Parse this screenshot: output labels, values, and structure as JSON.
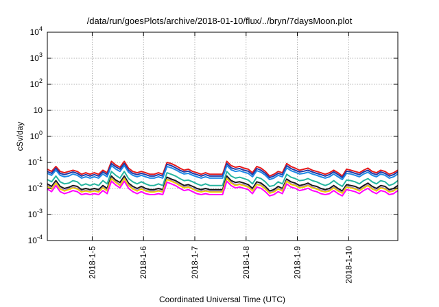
{
  "chart_data": {
    "type": "line",
    "title": "/data/run/goesPlots/archive/2018-01-10/flux/../bryn/7daysMoon.plot",
    "xlabel": "Coordinated Universal Time (UTC)",
    "ylabel": "cSv/day",
    "y_scale": "log",
    "ylim": [
      0.0001,
      10000
    ],
    "y_ticks": [
      {
        "value": 0.0001,
        "base": "10",
        "exp": "-4"
      },
      {
        "value": 0.001,
        "base": "10",
        "exp": "-3"
      },
      {
        "value": 0.01,
        "base": "10",
        "exp": "-2"
      },
      {
        "value": 0.1,
        "base": "10",
        "exp": "-1"
      },
      {
        "value": 1,
        "base": "10",
        "exp": "0"
      },
      {
        "value": 10,
        "base": "10",
        "exp": ""
      },
      {
        "value": 100,
        "base": "10",
        "exp": "2"
      },
      {
        "value": 1000,
        "base": "10",
        "exp": "3"
      },
      {
        "value": 10000,
        "base": "10",
        "exp": "4"
      }
    ],
    "xlim": [
      "2018-01-04T03:00",
      "2018-01-10T23:00"
    ],
    "x_ticks": [
      "2018-1-5",
      "2018-1-6",
      "2018-1-7",
      "2018-1-8",
      "2018-1-9",
      "2018-1-10"
    ],
    "grid": true,
    "x": [
      "2018-01-04T03:00",
      "2018-01-04T05:00",
      "2018-01-04T07:00",
      "2018-01-04T09:00",
      "2018-01-04T11:00",
      "2018-01-04T13:00",
      "2018-01-04T15:00",
      "2018-01-04T17:00",
      "2018-01-04T19:00",
      "2018-01-04T21:00",
      "2018-01-04T23:00",
      "2018-01-05T01:00",
      "2018-01-05T03:00",
      "2018-01-05T05:00",
      "2018-01-05T07:00",
      "2018-01-05T09:00",
      "2018-01-05T11:00",
      "2018-01-05T13:00",
      "2018-01-05T15:00",
      "2018-01-05T17:00",
      "2018-01-05T19:00",
      "2018-01-05T21:00",
      "2018-01-05T23:00",
      "2018-01-06T01:00",
      "2018-01-06T03:00",
      "2018-01-06T05:00",
      "2018-01-06T07:00",
      "2018-01-06T09:00",
      "2018-01-06T11:00",
      "2018-01-06T13:00",
      "2018-01-06T15:00",
      "2018-01-06T17:00",
      "2018-01-06T19:00",
      "2018-01-06T21:00",
      "2018-01-06T23:00",
      "2018-01-07T01:00",
      "2018-01-07T03:00",
      "2018-01-07T05:00",
      "2018-01-07T07:00",
      "2018-01-07T09:00",
      "2018-01-07T11:00",
      "2018-01-07T13:00",
      "2018-01-07T15:00",
      "2018-01-07T17:00",
      "2018-01-07T19:00",
      "2018-01-07T21:00",
      "2018-01-07T23:00",
      "2018-01-08T01:00",
      "2018-01-08T03:00",
      "2018-01-08T05:00",
      "2018-01-08T07:00",
      "2018-01-08T09:00",
      "2018-01-08T11:00",
      "2018-01-08T13:00",
      "2018-01-08T15:00",
      "2018-01-08T17:00",
      "2018-01-08T19:00",
      "2018-01-08T21:00",
      "2018-01-08T23:00",
      "2018-01-09T01:00",
      "2018-01-09T03:00",
      "2018-01-09T05:00",
      "2018-01-09T07:00",
      "2018-01-09T09:00",
      "2018-01-09T11:00",
      "2018-01-09T13:00",
      "2018-01-09T15:00",
      "2018-01-09T17:00",
      "2018-01-09T19:00",
      "2018-01-09T21:00",
      "2018-01-09T23:00",
      "2018-01-10T01:00",
      "2018-01-10T03:00",
      "2018-01-10T05:00",
      "2018-01-10T07:00",
      "2018-01-10T09:00",
      "2018-01-10T11:00",
      "2018-01-10T13:00",
      "2018-01-10T15:00",
      "2018-01-10T17:00",
      "2018-01-10T19:00",
      "2018-01-10T21:00",
      "2018-01-10T23:00"
    ],
    "series": [
      {
        "color": "#e41a1c",
        "values": [
          0.055,
          0.045,
          0.07,
          0.045,
          0.04,
          0.045,
          0.05,
          0.045,
          0.035,
          0.04,
          0.035,
          0.04,
          0.035,
          0.05,
          0.04,
          0.11,
          0.08,
          0.065,
          0.11,
          0.06,
          0.045,
          0.04,
          0.045,
          0.04,
          0.035,
          0.035,
          0.04,
          0.035,
          0.1,
          0.09,
          0.075,
          0.06,
          0.05,
          0.055,
          0.045,
          0.04,
          0.035,
          0.04,
          0.035,
          0.035,
          0.035,
          0.035,
          0.11,
          0.075,
          0.065,
          0.07,
          0.06,
          0.055,
          0.04,
          0.07,
          0.06,
          0.045,
          0.03,
          0.035,
          0.045,
          0.04,
          0.09,
          0.07,
          0.06,
          0.05,
          0.055,
          0.06,
          0.05,
          0.045,
          0.04,
          0.035,
          0.04,
          0.05,
          0.04,
          0.03,
          0.055,
          0.05,
          0.045,
          0.04,
          0.05,
          0.06,
          0.045,
          0.04,
          0.05,
          0.045,
          0.035,
          0.04,
          0.05
        ]
      },
      {
        "color": "#1f3aa8",
        "values": [
          0.045,
          0.038,
          0.06,
          0.038,
          0.034,
          0.038,
          0.043,
          0.038,
          0.03,
          0.034,
          0.03,
          0.034,
          0.03,
          0.043,
          0.034,
          0.09,
          0.068,
          0.055,
          0.09,
          0.05,
          0.038,
          0.034,
          0.038,
          0.034,
          0.03,
          0.03,
          0.034,
          0.03,
          0.085,
          0.075,
          0.062,
          0.05,
          0.043,
          0.046,
          0.038,
          0.034,
          0.03,
          0.034,
          0.03,
          0.03,
          0.03,
          0.03,
          0.09,
          0.062,
          0.055,
          0.058,
          0.05,
          0.046,
          0.034,
          0.058,
          0.05,
          0.038,
          0.026,
          0.03,
          0.038,
          0.034,
          0.075,
          0.058,
          0.05,
          0.043,
          0.046,
          0.05,
          0.043,
          0.038,
          0.034,
          0.03,
          0.034,
          0.043,
          0.034,
          0.026,
          0.046,
          0.043,
          0.038,
          0.034,
          0.043,
          0.05,
          0.038,
          0.034,
          0.043,
          0.038,
          0.03,
          0.034,
          0.043
        ]
      },
      {
        "color": "#1e88e5",
        "values": [
          0.038,
          0.032,
          0.05,
          0.032,
          0.028,
          0.03,
          0.036,
          0.032,
          0.025,
          0.028,
          0.025,
          0.028,
          0.025,
          0.036,
          0.028,
          0.075,
          0.056,
          0.045,
          0.075,
          0.042,
          0.032,
          0.028,
          0.032,
          0.028,
          0.025,
          0.025,
          0.028,
          0.025,
          0.07,
          0.062,
          0.052,
          0.042,
          0.036,
          0.038,
          0.032,
          0.028,
          0.025,
          0.028,
          0.025,
          0.025,
          0.025,
          0.025,
          0.075,
          0.052,
          0.045,
          0.048,
          0.042,
          0.038,
          0.028,
          0.048,
          0.042,
          0.032,
          0.022,
          0.025,
          0.032,
          0.028,
          0.062,
          0.048,
          0.042,
          0.036,
          0.038,
          0.042,
          0.036,
          0.032,
          0.028,
          0.025,
          0.028,
          0.036,
          0.028,
          0.022,
          0.038,
          0.036,
          0.032,
          0.028,
          0.036,
          0.042,
          0.032,
          0.028,
          0.036,
          0.032,
          0.025,
          0.028,
          0.036
        ]
      },
      {
        "color": "#26b5a0",
        "values": [
          0.022,
          0.018,
          0.03,
          0.018,
          0.015,
          0.016,
          0.02,
          0.018,
          0.013,
          0.015,
          0.013,
          0.015,
          0.013,
          0.02,
          0.015,
          0.045,
          0.032,
          0.025,
          0.045,
          0.024,
          0.018,
          0.015,
          0.018,
          0.015,
          0.013,
          0.013,
          0.015,
          0.013,
          0.04,
          0.035,
          0.03,
          0.024,
          0.02,
          0.021,
          0.018,
          0.015,
          0.013,
          0.015,
          0.013,
          0.013,
          0.013,
          0.013,
          0.045,
          0.03,
          0.025,
          0.027,
          0.024,
          0.021,
          0.015,
          0.027,
          0.024,
          0.018,
          0.012,
          0.013,
          0.018,
          0.015,
          0.035,
          0.027,
          0.024,
          0.02,
          0.021,
          0.024,
          0.02,
          0.018,
          0.015,
          0.013,
          0.015,
          0.02,
          0.015,
          0.012,
          0.021,
          0.02,
          0.018,
          0.015,
          0.02,
          0.024,
          0.018,
          0.015,
          0.02,
          0.018,
          0.013,
          0.015,
          0.02
        ]
      },
      {
        "color": "#1a1a1a",
        "values": [
          0.015,
          0.012,
          0.02,
          0.012,
          0.01,
          0.011,
          0.013,
          0.012,
          0.009,
          0.01,
          0.009,
          0.01,
          0.009,
          0.013,
          0.01,
          0.03,
          0.021,
          0.017,
          0.03,
          0.016,
          0.012,
          0.01,
          0.012,
          0.01,
          0.009,
          0.009,
          0.01,
          0.009,
          0.027,
          0.023,
          0.02,
          0.016,
          0.013,
          0.014,
          0.012,
          0.01,
          0.009,
          0.01,
          0.009,
          0.009,
          0.009,
          0.009,
          0.03,
          0.02,
          0.017,
          0.018,
          0.016,
          0.014,
          0.01,
          0.018,
          0.016,
          0.012,
          0.008,
          0.009,
          0.012,
          0.01,
          0.023,
          0.018,
          0.016,
          0.013,
          0.014,
          0.016,
          0.013,
          0.012,
          0.01,
          0.009,
          0.01,
          0.013,
          0.01,
          0.008,
          0.014,
          0.013,
          0.012,
          0.01,
          0.013,
          0.016,
          0.012,
          0.01,
          0.013,
          0.012,
          0.009,
          0.01,
          0.013
        ]
      },
      {
        "color": "#9b6bd6",
        "values": [
          0.013,
          0.01,
          0.017,
          0.01,
          0.0085,
          0.0095,
          0.011,
          0.01,
          0.0078,
          0.0085,
          0.0078,
          0.0085,
          0.0078,
          0.011,
          0.0085,
          0.025,
          0.018,
          0.014,
          0.025,
          0.0135,
          0.01,
          0.0085,
          0.01,
          0.0085,
          0.0078,
          0.0078,
          0.0085,
          0.0078,
          0.023,
          0.02,
          0.017,
          0.0135,
          0.011,
          0.012,
          0.01,
          0.0085,
          0.0078,
          0.0085,
          0.0078,
          0.0078,
          0.0078,
          0.0078,
          0.025,
          0.017,
          0.014,
          0.015,
          0.0135,
          0.012,
          0.0085,
          0.015,
          0.0135,
          0.01,
          0.007,
          0.0078,
          0.01,
          0.0085,
          0.02,
          0.015,
          0.0135,
          0.011,
          0.012,
          0.0135,
          0.011,
          0.01,
          0.0085,
          0.0078,
          0.0085,
          0.011,
          0.0085,
          0.007,
          0.012,
          0.011,
          0.01,
          0.0085,
          0.011,
          0.0135,
          0.01,
          0.0085,
          0.011,
          0.01,
          0.0078,
          0.0085,
          0.011
        ]
      },
      {
        "color": "#f0d000",
        "values": [
          0.012,
          0.0095,
          0.016,
          0.0095,
          0.008,
          0.009,
          0.0105,
          0.0095,
          0.0073,
          0.008,
          0.0073,
          0.008,
          0.0073,
          0.0105,
          0.008,
          0.024,
          0.017,
          0.013,
          0.024,
          0.0128,
          0.0095,
          0.008,
          0.0095,
          0.008,
          0.0073,
          0.0073,
          0.008,
          0.0073,
          0.022,
          0.019,
          0.016,
          0.0128,
          0.0105,
          0.0113,
          0.0095,
          0.008,
          0.0073,
          0.008,
          0.0073,
          0.0073,
          0.0073,
          0.0073,
          0.024,
          0.016,
          0.013,
          0.0142,
          0.0128,
          0.0113,
          0.008,
          0.0142,
          0.0128,
          0.0095,
          0.0066,
          0.0073,
          0.0095,
          0.008,
          0.019,
          0.0142,
          0.0128,
          0.0105,
          0.0113,
          0.0128,
          0.0105,
          0.0095,
          0.008,
          0.0073,
          0.008,
          0.0105,
          0.008,
          0.0066,
          0.0113,
          0.0105,
          0.0095,
          0.008,
          0.0105,
          0.0128,
          0.0095,
          0.008,
          0.0105,
          0.0095,
          0.0073,
          0.008,
          0.0105
        ]
      },
      {
        "color": "#ff00ff",
        "values": [
          0.0095,
          0.0075,
          0.013,
          0.0075,
          0.0063,
          0.0071,
          0.0083,
          0.0075,
          0.0058,
          0.0063,
          0.0058,
          0.0063,
          0.0058,
          0.0083,
          0.0063,
          0.019,
          0.0135,
          0.0105,
          0.019,
          0.0101,
          0.0075,
          0.0063,
          0.0075,
          0.0063,
          0.0058,
          0.0058,
          0.0063,
          0.0058,
          0.0175,
          0.015,
          0.0128,
          0.0101,
          0.0083,
          0.009,
          0.0075,
          0.0063,
          0.0058,
          0.0063,
          0.0058,
          0.0058,
          0.0058,
          0.0058,
          0.019,
          0.0128,
          0.0105,
          0.0113,
          0.0101,
          0.009,
          0.0063,
          0.0113,
          0.0101,
          0.0075,
          0.0052,
          0.0058,
          0.0075,
          0.0063,
          0.015,
          0.0113,
          0.0101,
          0.0083,
          0.009,
          0.0101,
          0.0083,
          0.0075,
          0.0063,
          0.0058,
          0.0063,
          0.0083,
          0.0063,
          0.0052,
          0.009,
          0.0083,
          0.0075,
          0.0063,
          0.0083,
          0.0101,
          0.0075,
          0.0063,
          0.0083,
          0.0075,
          0.0058,
          0.0063,
          0.0083
        ]
      }
    ]
  }
}
